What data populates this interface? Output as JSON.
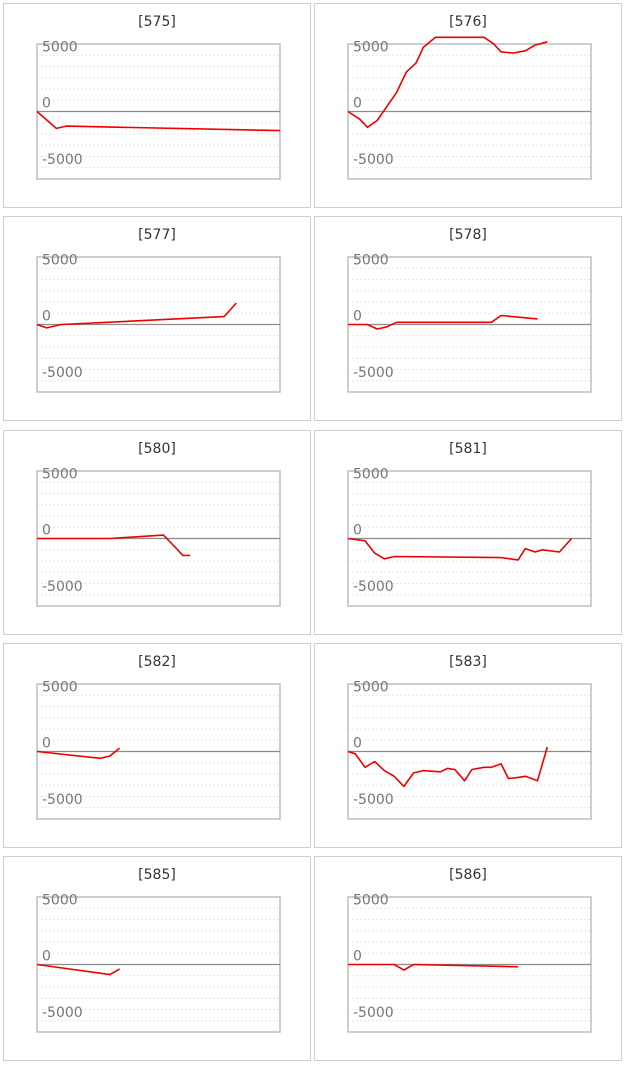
{
  "colors": {
    "line": "#ee0000",
    "baseline": "#8c8c8c",
    "gridline": "#e4e4e4",
    "frame": "#bdbdbd",
    "cell_border": "#cfcfcf",
    "tick_text": "#777777"
  },
  "chart_data": [
    {
      "type": "line",
      "title": "[575]",
      "ylim": [
        -6000,
        6000
      ],
      "yticks": [
        5000,
        0,
        -5000
      ],
      "xlim": [
        0,
        100
      ],
      "series": [
        {
          "x": [
            0,
            8,
            12,
            100
          ],
          "y": [
            0,
            -1500,
            -1300,
            -1700
          ]
        }
      ]
    },
    {
      "type": "line",
      "title": "[576]",
      "ylim": [
        -6000,
        6000
      ],
      "yticks": [
        5000,
        0,
        -5000
      ],
      "xlim": [
        0,
        100
      ],
      "series": [
        {
          "x": [
            0,
            5,
            8,
            12,
            20,
            24,
            28,
            31,
            36,
            56,
            60,
            63,
            68,
            73,
            77,
            82
          ],
          "y": [
            0,
            -700,
            -1400,
            -800,
            1700,
            3500,
            4300,
            5700,
            6600,
            6600,
            6000,
            5300,
            5200,
            5400,
            5900,
            6200
          ]
        }
      ]
    },
    {
      "type": "line",
      "title": "[577]",
      "ylim": [
        -6000,
        6000
      ],
      "yticks": [
        5000,
        0,
        -5000
      ],
      "xlim": [
        0,
        100
      ],
      "series": [
        {
          "x": [
            0,
            4,
            10,
            77,
            82
          ],
          "y": [
            0,
            -300,
            0,
            700,
            1900
          ]
        }
      ]
    },
    {
      "type": "line",
      "title": "[578]",
      "ylim": [
        -6000,
        6000
      ],
      "yticks": [
        5000,
        0,
        -5000
      ],
      "xlim": [
        0,
        100
      ],
      "series": [
        {
          "x": [
            0,
            8,
            12,
            16,
            20,
            59,
            63,
            78
          ],
          "y": [
            0,
            0,
            -400,
            -200,
            200,
            200,
            800,
            500
          ]
        }
      ]
    },
    {
      "type": "line",
      "title": "[580]",
      "ylim": [
        -6000,
        6000
      ],
      "yticks": [
        5000,
        0,
        -5000
      ],
      "xlim": [
        0,
        100
      ],
      "series": [
        {
          "x": [
            0,
            30,
            52,
            57,
            60,
            63
          ],
          "y": [
            0,
            0,
            300,
            -800,
            -1500,
            -1500
          ]
        }
      ]
    },
    {
      "type": "line",
      "title": "[581]",
      "ylim": [
        -6000,
        6000
      ],
      "yticks": [
        5000,
        0,
        -5000
      ],
      "xlim": [
        0,
        100
      ],
      "series": [
        {
          "x": [
            0,
            7,
            11,
            15,
            19,
            63,
            70,
            73,
            77,
            80,
            87,
            92
          ],
          "y": [
            0,
            -200,
            -1300,
            -1800,
            -1600,
            -1700,
            -1900,
            -900,
            -1200,
            -1000,
            -1200,
            0
          ]
        }
      ]
    },
    {
      "type": "line",
      "title": "[582]",
      "ylim": [
        -6000,
        6000
      ],
      "yticks": [
        5000,
        0,
        -5000
      ],
      "xlim": [
        0,
        100
      ],
      "series": [
        {
          "x": [
            0,
            26,
            30,
            34
          ],
          "y": [
            0,
            -600,
            -400,
            300
          ]
        }
      ]
    },
    {
      "type": "line",
      "title": "[583]",
      "ylim": [
        -6000,
        6000
      ],
      "yticks": [
        5000,
        0,
        -5000
      ],
      "xlim": [
        0,
        100
      ],
      "series": [
        {
          "x": [
            0,
            3,
            7,
            11,
            15,
            19,
            23,
            27,
            31,
            38,
            41,
            44,
            48,
            51,
            56,
            59,
            63,
            66,
            70,
            73,
            78,
            82
          ],
          "y": [
            0,
            -200,
            -1400,
            -900,
            -1700,
            -2200,
            -3100,
            -1900,
            -1700,
            -1800,
            -1500,
            -1600,
            -2600,
            -1600,
            -1400,
            -1400,
            -1100,
            -2400,
            -2300,
            -2200,
            -2600,
            400
          ]
        }
      ]
    },
    {
      "type": "line",
      "title": "[585]",
      "ylim": [
        -6000,
        6000
      ],
      "yticks": [
        5000,
        0,
        -5000
      ],
      "xlim": [
        0,
        100
      ],
      "series": [
        {
          "x": [
            0,
            30,
            34
          ],
          "y": [
            0,
            -900,
            -400
          ]
        }
      ]
    },
    {
      "type": "line",
      "title": "[586]",
      "ylim": [
        -6000,
        6000
      ],
      "yticks": [
        5000,
        0,
        -5000
      ],
      "xlim": [
        0,
        100
      ],
      "series": [
        {
          "x": [
            0,
            19,
            23,
            27,
            70
          ],
          "y": [
            0,
            0,
            -500,
            0,
            -200
          ]
        }
      ]
    }
  ]
}
